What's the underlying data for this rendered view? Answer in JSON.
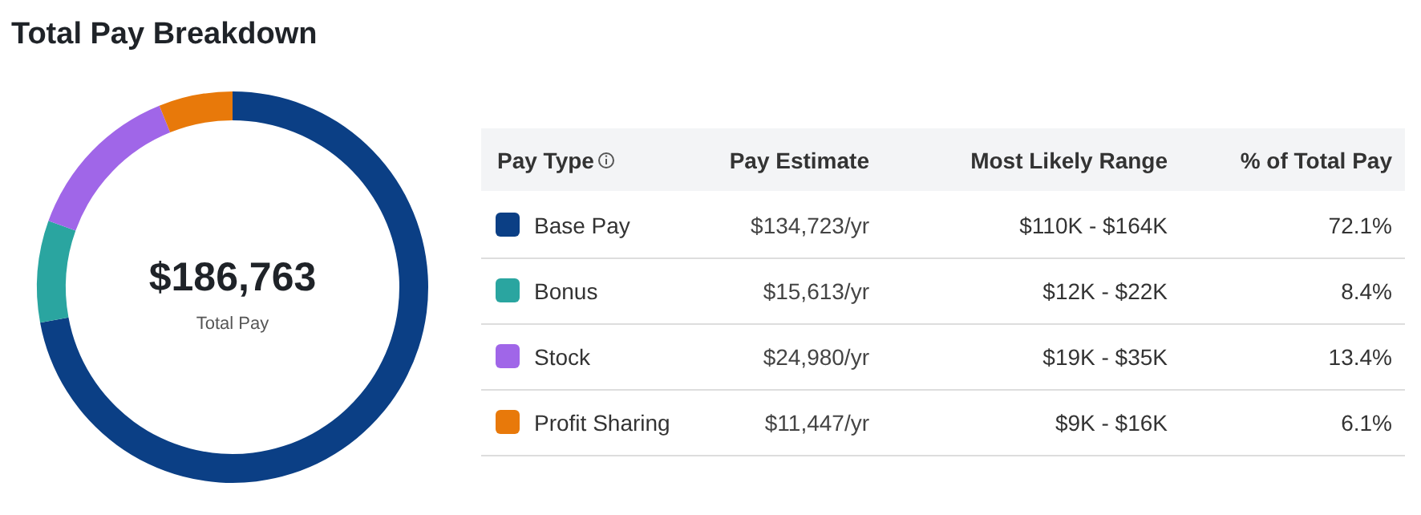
{
  "chart_data": {
    "type": "donut",
    "title": "Total Pay Breakdown",
    "categories": [
      "Base Pay",
      "Bonus",
      "Stock",
      "Profit Sharing"
    ],
    "values": [
      72.1,
      8.4,
      13.4,
      6.1
    ],
    "colors": [
      "#0b3f85",
      "#2aa5a0",
      "#a066e8",
      "#e8790a"
    ],
    "value_labels": [
      "72.1%",
      "8.4%",
      "13.4%",
      "6.1%"
    ],
    "legend": "right",
    "annotations": [
      "$186,763",
      "Total Pay",
      "Pay Type",
      "Pay Estimate",
      "Most Likely Range",
      "% of Total Pay",
      "$134,723/yr",
      "$110K - $164K",
      "$15,613/yr",
      "$12K - $22K",
      "$24,980/yr",
      "$19K - $35K",
      "$11,447/yr",
      "$9K - $16K"
    ]
  }
}
